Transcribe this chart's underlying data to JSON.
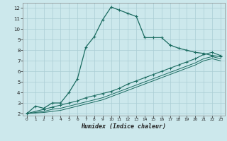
{
  "title": "",
  "xlabel": "Humidex (Indice chaleur)",
  "ylabel": "",
  "background_color": "#cce8ec",
  "grid_color": "#aacdd4",
  "line_color": "#1a6b60",
  "xlim": [
    -0.5,
    23.5
  ],
  "ylim": [
    1.8,
    12.5
  ],
  "xticks": [
    0,
    1,
    2,
    3,
    4,
    5,
    6,
    7,
    8,
    9,
    10,
    11,
    12,
    13,
    14,
    15,
    16,
    17,
    18,
    19,
    20,
    21,
    22,
    23
  ],
  "yticks": [
    2,
    3,
    4,
    5,
    6,
    7,
    8,
    9,
    10,
    11,
    12
  ],
  "series1_x": [
    0,
    1,
    2,
    3,
    4,
    5,
    6,
    7,
    8,
    9,
    10,
    11,
    12,
    13,
    14,
    15,
    16,
    17,
    18,
    19,
    20,
    21,
    22,
    23
  ],
  "series1_y": [
    2.0,
    2.7,
    2.5,
    3.0,
    3.0,
    4.0,
    5.3,
    8.3,
    9.3,
    10.9,
    12.1,
    11.8,
    11.5,
    11.2,
    9.2,
    9.2,
    9.2,
    8.5,
    8.2,
    8.0,
    7.8,
    7.7,
    7.5,
    7.4
  ],
  "series2_x": [
    0,
    2,
    3,
    4,
    5,
    6,
    7,
    8,
    9,
    10,
    11,
    12,
    13,
    14,
    15,
    16,
    17,
    18,
    19,
    20,
    21,
    22,
    23
  ],
  "series2_y": [
    2.0,
    2.4,
    2.6,
    2.8,
    3.0,
    3.2,
    3.5,
    3.7,
    3.9,
    4.1,
    4.4,
    4.8,
    5.1,
    5.4,
    5.7,
    6.0,
    6.3,
    6.6,
    6.9,
    7.2,
    7.6,
    7.8,
    7.5
  ],
  "series3_x": [
    0,
    2,
    3,
    4,
    5,
    6,
    7,
    8,
    9,
    10,
    11,
    12,
    13,
    14,
    15,
    16,
    17,
    18,
    19,
    20,
    21,
    22,
    23
  ],
  "series3_y": [
    2.0,
    2.2,
    2.4,
    2.5,
    2.7,
    2.9,
    3.1,
    3.3,
    3.5,
    3.8,
    4.1,
    4.4,
    4.7,
    5.0,
    5.3,
    5.6,
    5.9,
    6.2,
    6.5,
    6.8,
    7.2,
    7.4,
    7.2
  ],
  "series4_x": [
    0,
    2,
    3,
    4,
    5,
    6,
    7,
    8,
    9,
    10,
    11,
    12,
    13,
    14,
    15,
    16,
    17,
    18,
    19,
    20,
    21,
    22,
    23
  ],
  "series4_y": [
    2.0,
    2.1,
    2.2,
    2.3,
    2.5,
    2.7,
    2.9,
    3.1,
    3.3,
    3.6,
    3.9,
    4.2,
    4.5,
    4.8,
    5.1,
    5.4,
    5.7,
    6.0,
    6.3,
    6.6,
    7.0,
    7.2,
    7.0
  ]
}
